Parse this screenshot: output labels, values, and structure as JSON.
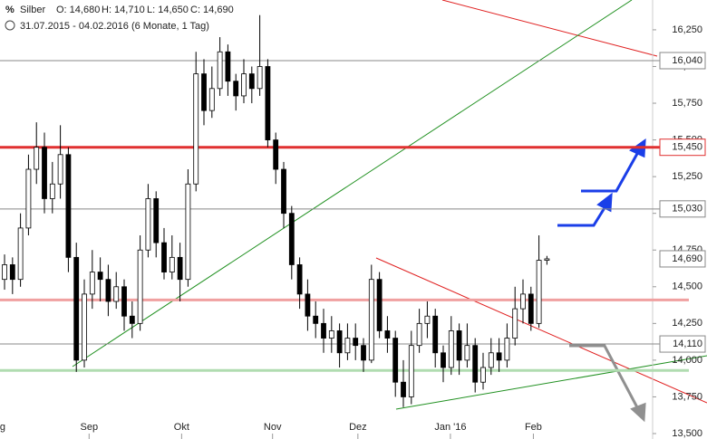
{
  "chart_data": {
    "type": "candlestick",
    "title": "Silber",
    "quote": [
      "O: 14,680",
      "H: 14,710",
      "L: 14,650",
      "C: 14,690"
    ],
    "subtitle": "31.07.2015 - 04.02.2016 (6 Monate, 1 Tag)",
    "xlim": [
      -0.57,
      81.25
    ],
    "xticks": [
      {
        "value": -1,
        "label": "Aug"
      },
      {
        "value": 10.6,
        "label": "Sep"
      },
      {
        "value": 22.2,
        "label": "Okt"
      },
      {
        "value": 33.6,
        "label": "Nov"
      },
      {
        "value": 44.3,
        "label": "Dez"
      },
      {
        "value": 55.9,
        "label": "Jan '16"
      },
      {
        "value": 66.3,
        "label": "Feb"
      }
    ],
    "ylim": [
      13.463,
      16.453
    ],
    "yticks": [
      {
        "value": 13.5,
        "label": "13,500"
      },
      {
        "value": 13.75,
        "label": "13,750"
      },
      {
        "value": 14.0,
        "label": "14,000"
      },
      {
        "value": 14.25,
        "label": "14,250"
      },
      {
        "value": 14.5,
        "label": "14,500"
      },
      {
        "value": 14.75,
        "label": "14,750"
      },
      {
        "value": 15.0,
        "label": "15,000"
      },
      {
        "value": 15.25,
        "label": "15,250"
      },
      {
        "value": 15.5,
        "label": "15,500"
      },
      {
        "value": 15.75,
        "label": "15,750"
      },
      {
        "value": 16.0,
        "label": "16,000"
      },
      {
        "value": 16.25,
        "label": "16,250"
      }
    ],
    "open": [
      14.55,
      14.65,
      14.55,
      14.9,
      15.3,
      15.45,
      15.1,
      15.2,
      15.4,
      14.7,
      14.0,
      14.45,
      14.6,
      14.55,
      14.4,
      14.5,
      14.3,
      14.25,
      14.75,
      15.1,
      14.8,
      14.6,
      14.7,
      14.55,
      15.2,
      15.95,
      15.7,
      15.85,
      16.1,
      15.9,
      15.8,
      15.95,
      15.85,
      16.0,
      15.5,
      15.3,
      15.0,
      14.65,
      14.45,
      14.3,
      14.25,
      14.15,
      14.2,
      14.05,
      14.15,
      14.1,
      14.0,
      14.55,
      14.2,
      14.15,
      13.85,
      13.75,
      14.1,
      14.25,
      14.3,
      14.05,
      13.95,
      14.2,
      14.0,
      14.1,
      13.85,
      13.95,
      14.05,
      14.0,
      14.15,
      14.35,
      14.45,
      14.25,
      14.68
    ],
    "high": [
      14.72,
      14.7,
      15.0,
      15.4,
      15.62,
      15.55,
      15.35,
      15.6,
      15.45,
      14.8,
      14.55,
      14.75,
      14.7,
      14.65,
      14.6,
      14.55,
      14.4,
      14.85,
      15.2,
      15.15,
      14.9,
      14.85,
      14.8,
      15.3,
      16.1,
      16.05,
      16.0,
      16.2,
      16.15,
      15.95,
      16.05,
      16.0,
      16.35,
      16.05,
      15.55,
      15.35,
      15.05,
      14.7,
      14.55,
      14.4,
      14.35,
      14.3,
      14.25,
      14.25,
      14.25,
      14.15,
      14.65,
      14.6,
      14.3,
      14.2,
      14.0,
      14.2,
      14.35,
      14.4,
      14.35,
      14.1,
      14.3,
      14.25,
      14.25,
      14.15,
      14.05,
      14.15,
      14.15,
      14.25,
      14.5,
      14.55,
      14.5,
      14.85,
      14.71
    ],
    "low": [
      14.48,
      14.45,
      14.5,
      14.85,
      15.2,
      15.0,
      15.0,
      15.1,
      14.6,
      13.92,
      13.95,
      14.35,
      14.4,
      14.3,
      14.35,
      14.2,
      14.15,
      14.2,
      14.7,
      14.7,
      14.55,
      14.55,
      14.4,
      14.5,
      15.15,
      15.6,
      15.65,
      15.8,
      15.8,
      15.7,
      15.75,
      15.75,
      15.8,
      15.45,
      15.2,
      14.9,
      14.55,
      14.35,
      14.2,
      14.15,
      14.05,
      14.05,
      13.95,
      14.0,
      14.0,
      13.92,
      13.98,
      14.15,
      14.05,
      13.75,
      13.68,
      13.7,
      14.05,
      14.15,
      13.95,
      13.85,
      13.9,
      13.9,
      13.95,
      13.78,
      13.8,
      13.9,
      13.92,
      13.95,
      14.1,
      14.25,
      14.2,
      14.22,
      14.65
    ],
    "close": [
      14.65,
      14.55,
      14.9,
      15.3,
      15.45,
      15.1,
      15.2,
      15.4,
      14.7,
      14.0,
      14.45,
      14.6,
      14.55,
      14.4,
      14.5,
      14.3,
      14.25,
      14.75,
      15.1,
      14.8,
      14.6,
      14.7,
      14.55,
      15.2,
      15.95,
      15.7,
      15.85,
      16.1,
      15.9,
      15.8,
      15.95,
      15.85,
      16.0,
      15.5,
      15.3,
      15.0,
      14.65,
      14.45,
      14.3,
      14.25,
      14.15,
      14.2,
      14.05,
      14.15,
      14.1,
      14.0,
      14.55,
      14.2,
      14.15,
      13.85,
      13.75,
      14.1,
      14.25,
      14.3,
      14.05,
      13.95,
      14.2,
      14.0,
      14.1,
      13.85,
      13.95,
      14.05,
      14.0,
      14.15,
      14.35,
      14.45,
      14.25,
      14.68,
      14.69
    ],
    "levels": [
      {
        "value": 16.04,
        "label": "16,040",
        "color": "#888888"
      },
      {
        "value": 15.45,
        "label": "15,450",
        "color": "#e03030"
      },
      {
        "value": 15.03,
        "label": "15,030",
        "color": "#888888"
      },
      {
        "value": 14.41,
        "color": "#f0a0a0"
      },
      {
        "value": 14.11,
        "label": "14,110",
        "color": "#888888"
      },
      {
        "value": 13.93,
        "color": "#b0dcb0"
      }
    ],
    "last": {
      "value": 14.69,
      "label": "14,690"
    }
  }
}
